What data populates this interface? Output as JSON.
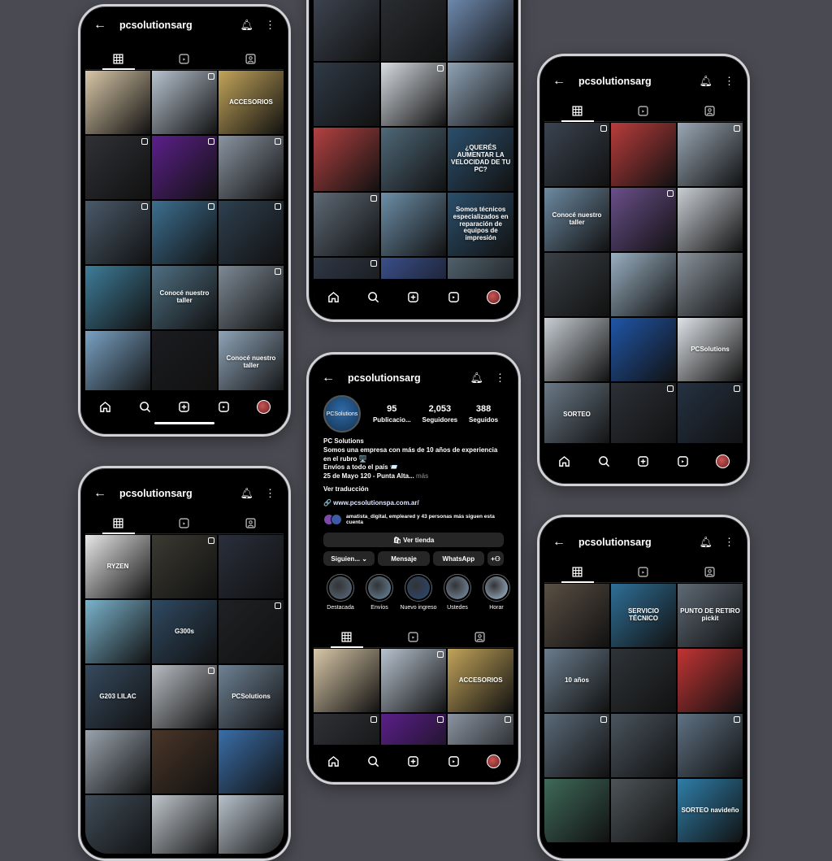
{
  "username": "pcsolutionsarg",
  "profile": {
    "avatar_text": "PCSolutions",
    "posts": "95",
    "posts_label": "Publicacio...",
    "followers": "2,053",
    "followers_label": "Seguidores",
    "following": "388",
    "following_label": "Seguidos",
    "name": "PC Solutions",
    "bio_1": "Somos una empresa con más de 10 años de experiencia en el rubro 🖥️",
    "bio_2": "Envíos a todo el país 📨",
    "bio_3": "25 de Mayo 120 - Punta Alta...",
    "bio_more": "más",
    "translate": "Ver traducción",
    "website": "🔗 www.pcsolutionspa.com.ar/",
    "followed_by": "amatista_digital, empleared y 43 personas más siguen esta cuenta",
    "store_btn": "🛍 Ver tienda",
    "following_btn": "Siguien... ⌄",
    "message_btn": "Mensaje",
    "whatsapp_btn": "WhatsApp",
    "add_person_btn": "+⚇"
  },
  "highlights": [
    {
      "label": "Destacada",
      "color": "#5b6e82"
    },
    {
      "label": "Envíos",
      "color": "#6a8aa4"
    },
    {
      "label": "Nuevo ingreso",
      "color": "#2b4b78"
    },
    {
      "label": "Ustedes",
      "color": "#7f97ad"
    },
    {
      "label": "Horar",
      "color": "#a7c0d6"
    }
  ],
  "phones": {
    "p1": [
      {
        "c": "#d9c8a8",
        "t": "",
        "r": false
      },
      {
        "c": "#b7c3d0",
        "t": "",
        "r": true
      },
      {
        "c": "#c2a45a",
        "t": "ACCESORIOS",
        "r": false
      },
      {
        "c": "#2f3136",
        "t": "",
        "r": true
      },
      {
        "c": "#5b1f8a",
        "t": "",
        "r": true
      },
      {
        "c": "#8a94a2",
        "t": "",
        "r": true
      },
      {
        "c": "#4a5a6a",
        "t": "",
        "r": true
      },
      {
        "c": "#3d6f90",
        "t": "",
        "r": true
      },
      {
        "c": "#2e4050",
        "t": "",
        "r": true
      },
      {
        "c": "#3f7d99",
        "t": "",
        "r": false
      },
      {
        "c": "#4f6f82",
        "t": "Conocé nuestro taller",
        "r": false
      },
      {
        "c": "#7d8a96",
        "t": "",
        "r": true
      },
      {
        "c": "#7aa2c4",
        "t": "",
        "r": false
      },
      {
        "c": "#1b1c20",
        "t": "",
        "r": false
      },
      {
        "c": "#8fa4b8",
        "t": "Conocé nuestro taller",
        "r": false
      }
    ],
    "p2": [
      {
        "c": "#3d4450",
        "t": "",
        "r": false
      },
      {
        "c": "#2a2d31",
        "t": "",
        "r": false
      },
      {
        "c": "#6f8bb0",
        "t": "",
        "r": false
      },
      {
        "c": "#2f3a46",
        "t": "",
        "r": false
      },
      {
        "c": "#d7dce2",
        "t": "",
        "r": true
      },
      {
        "c": "#8fa3b6",
        "t": "",
        "r": false
      },
      {
        "c": "#b34141",
        "t": "",
        "r": false
      },
      {
        "c": "#4f6878",
        "t": "",
        "r": false
      },
      {
        "c": "#2b4f6c",
        "t": "¿QUERÉS AUMENTAR LA VELOCIDAD DE TU PC?",
        "r": false
      },
      {
        "c": "#5e6a76",
        "t": "",
        "r": true
      },
      {
        "c": "#6d8fa8",
        "t": "",
        "r": false
      },
      {
        "c": "#2b4f6c",
        "t": "Somos técnicos especializados en reparación de equipos de impresión",
        "r": false
      },
      {
        "c": "#303846",
        "t": "",
        "r": true
      },
      {
        "c": "#3a4f8a",
        "t": "",
        "r": false
      },
      {
        "c": "#50606c",
        "t": "",
        "r": false
      }
    ],
    "p3": [
      {
        "c": "#3a4450",
        "t": "",
        "r": true
      },
      {
        "c": "#b93c3c",
        "t": "",
        "r": false
      },
      {
        "c": "#9aa8b5",
        "t": "",
        "r": true
      },
      {
        "c": "#6d8aa2",
        "t": "Conocé nuestro taller",
        "r": false
      },
      {
        "c": "#6a4f8a",
        "t": "",
        "r": true
      },
      {
        "c": "#c9ced4",
        "t": "",
        "r": false
      },
      {
        "c": "#3a4046",
        "t": "",
        "r": false
      },
      {
        "c": "#9ab0c2",
        "t": "",
        "r": false
      },
      {
        "c": "#8a939c",
        "t": "",
        "r": false
      },
      {
        "c": "#c8ced4",
        "t": "",
        "r": false
      },
      {
        "c": "#1f56a8",
        "t": "",
        "r": false
      },
      {
        "c": "#dfe3e8",
        "t": "PCSolutions",
        "r": false
      },
      {
        "c": "#6b7a88",
        "t": "SORTEO",
        "r": false
      },
      {
        "c": "#2c3036",
        "t": "",
        "r": true
      },
      {
        "c": "#243242",
        "t": "",
        "r": true
      }
    ],
    "p4": [
      {
        "c": "#e8e8e8",
        "t": "RYZEN",
        "r": false
      },
      {
        "c": "#3b3a32",
        "t": "",
        "r": true
      },
      {
        "c": "#2a2f3c",
        "t": "",
        "r": false
      },
      {
        "c": "#7bb3cc",
        "t": "",
        "r": false
      },
      {
        "c": "#2f4a62",
        "t": "G300s",
        "r": false
      },
      {
        "c": "#1f2124",
        "t": "",
        "r": true
      },
      {
        "c": "#364a5e",
        "t": "G203 LILAC",
        "r": false
      },
      {
        "c": "#b8bcc2",
        "t": "",
        "r": true
      },
      {
        "c": "#6e8294",
        "t": "PCSolutions",
        "r": false
      },
      {
        "c": "#9aa4ae",
        "t": "",
        "r": false
      },
      {
        "c": "#4a3628",
        "t": "",
        "r": false
      },
      {
        "c": "#3a6ea8",
        "t": "",
        "r": false
      },
      {
        "c": "#3f4c58",
        "t": "",
        "r": false
      },
      {
        "c": "#c0c6cc",
        "t": "",
        "r": false
      },
      {
        "c": "#b8c2cc",
        "t": "",
        "r": false
      }
    ],
    "p5": [
      {
        "c": "#5a4f44",
        "t": "",
        "r": false
      },
      {
        "c": "#2f6f96",
        "t": "SERVICIO TÉCNICO",
        "r": false
      },
      {
        "c": "#5f6a76",
        "t": "PUNTO DE RETIRO pickit",
        "r": false
      },
      {
        "c": "#6a7c8c",
        "t": "10 años",
        "r": false
      },
      {
        "c": "#2f3438",
        "t": "",
        "r": false
      },
      {
        "c": "#c23434",
        "t": "",
        "r": false
      },
      {
        "c": "#5a6a78",
        "t": "",
        "r": true
      },
      {
        "c": "#4a545e",
        "t": "",
        "r": false
      },
      {
        "c": "#5f7284",
        "t": "",
        "r": true
      },
      {
        "c": "#3f6a5a",
        "t": "",
        "r": false
      },
      {
        "c": "#4d5458",
        "t": "",
        "r": false
      },
      {
        "c": "#2f7ea8",
        "t": "SORTEO navideño",
        "r": false
      }
    ],
    "center": [
      {
        "c": "#d9c8a8",
        "t": "",
        "r": false
      },
      {
        "c": "#b7c3d0",
        "t": "",
        "r": true
      },
      {
        "c": "#c2a45a",
        "t": "ACCESORIOS",
        "r": false
      },
      {
        "c": "#2f3136",
        "t": "",
        "r": true
      },
      {
        "c": "#5b1f8a",
        "t": "",
        "r": true
      },
      {
        "c": "#8a94a2",
        "t": "",
        "r": true
      }
    ]
  }
}
